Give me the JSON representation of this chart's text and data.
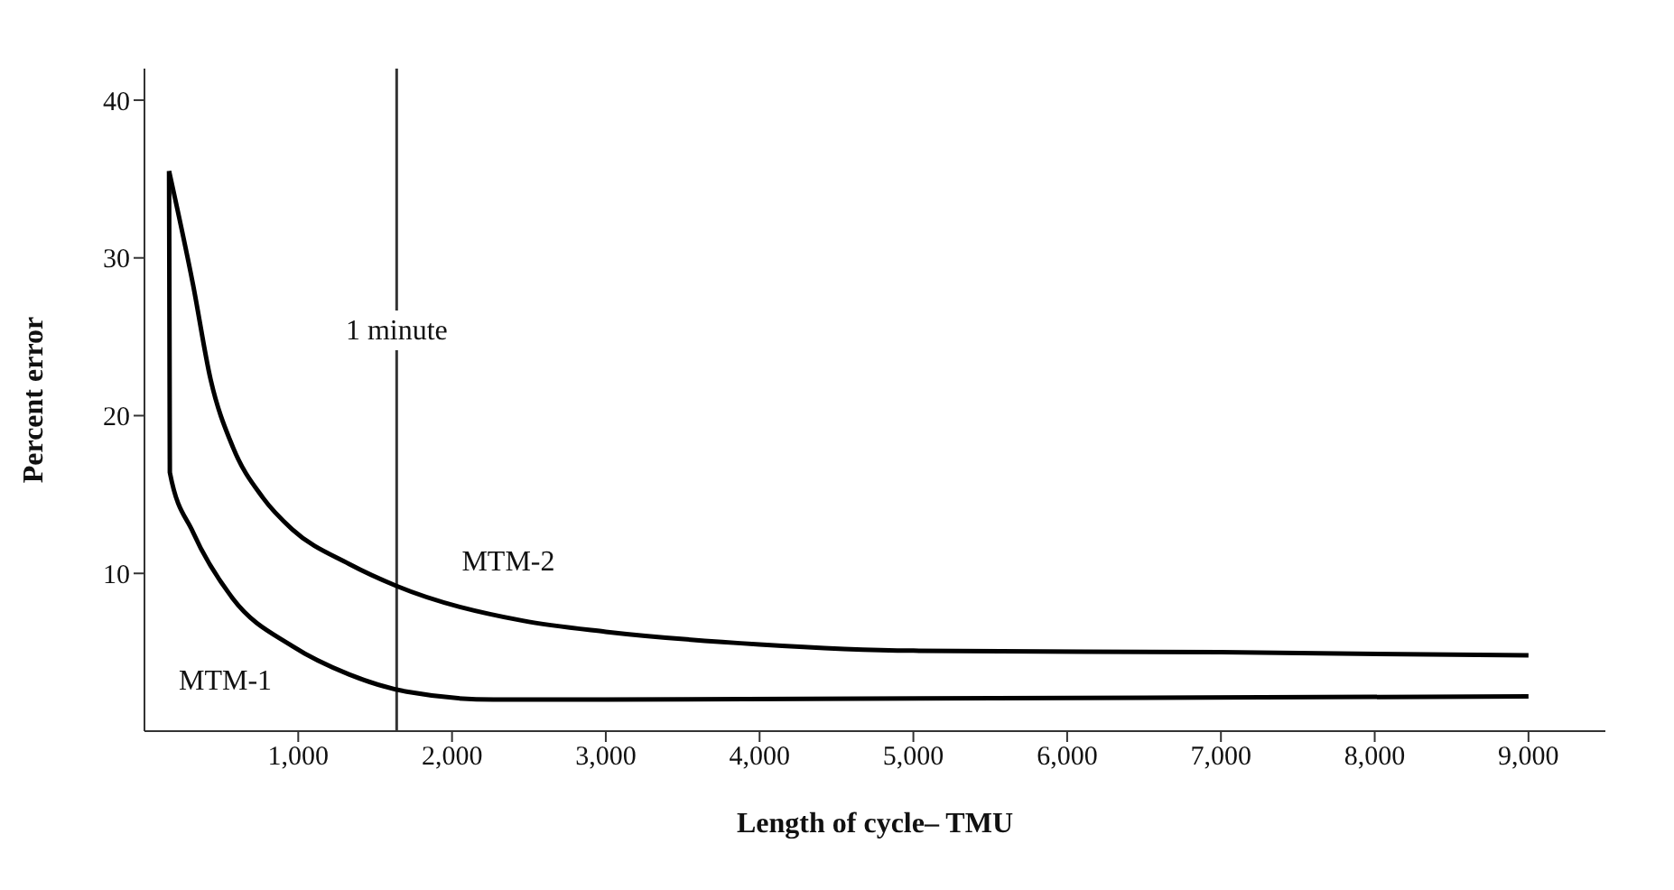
{
  "chart_data": {
    "type": "line",
    "xlabel": "Length of cycle– TMU",
    "ylabel": "Percent error",
    "xlim": [
      0,
      9500
    ],
    "ylim": [
      0,
      42
    ],
    "xticks": [
      {
        "value": 1000,
        "label": "1,000"
      },
      {
        "value": 2000,
        "label": "2,000"
      },
      {
        "value": 3000,
        "label": "3,000"
      },
      {
        "value": 4000,
        "label": "4,000"
      },
      {
        "value": 5000,
        "label": "5,000"
      },
      {
        "value": 6000,
        "label": "6,000"
      },
      {
        "value": 7000,
        "label": "7,000"
      },
      {
        "value": 8000,
        "label": "8,000"
      },
      {
        "value": 9000,
        "label": "9,000"
      }
    ],
    "yticks": [
      10,
      20,
      30,
      40
    ],
    "grid": false,
    "legend": false,
    "marker": "none",
    "line_style": "solid",
    "ref_lines": [
      {
        "axis": "x",
        "value": 1640,
        "label": "1 minute",
        "color": "#333333"
      }
    ],
    "series": [
      {
        "name": "MTM-2",
        "color": "#000000",
        "x": [
          160,
          316,
          430,
          575,
          770,
          960,
          1330,
          1640,
          2460,
          3000,
          4000,
          5000,
          7000,
          9000
        ],
        "values": [
          35.5,
          28.3,
          22.3,
          18.0,
          14.8,
          12.8,
          10.6,
          9.2,
          7.0,
          6.3,
          5.5,
          5.1,
          5.0,
          4.8
        ]
      },
      {
        "name": "MTM-1",
        "color": "#000000",
        "x": [
          160,
          165,
          316,
          575,
          960,
          1330,
          1705,
          2270,
          3000,
          9000
        ],
        "values": [
          35.5,
          16.4,
          12.6,
          8.4,
          5.4,
          3.6,
          2.5,
          2.0,
          2.0,
          2.2
        ]
      }
    ]
  }
}
